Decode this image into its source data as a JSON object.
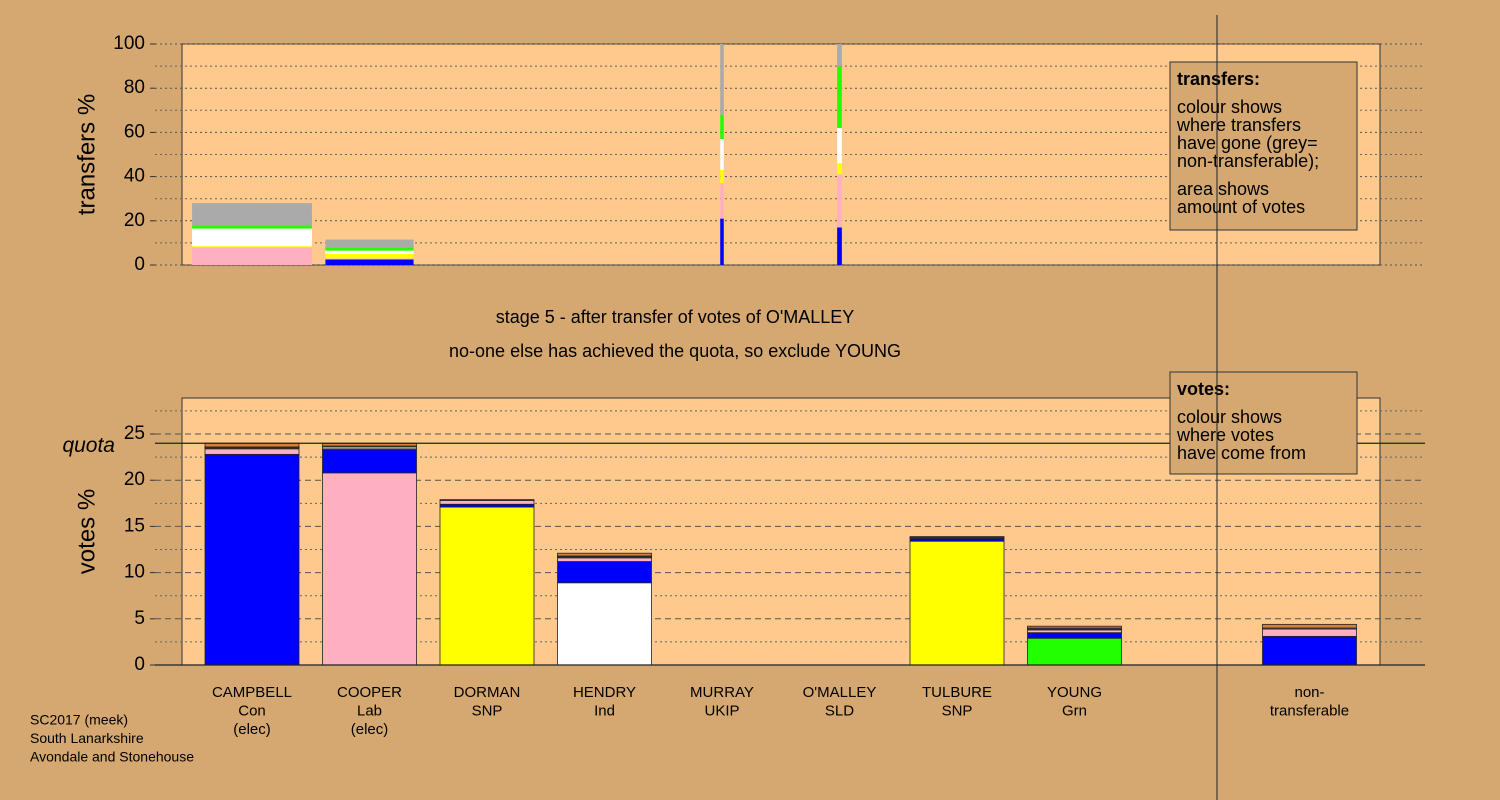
{
  "chart_data": [
    {
      "type": "bar",
      "stacked": true,
      "ylabel": "transfers %",
      "ylim": [
        0,
        100
      ],
      "yticks": [
        0,
        20,
        40,
        60,
        80,
        100
      ],
      "grid": true,
      "widths": [
        1.02,
        0.75,
        0,
        0,
        0.03,
        0.04,
        0,
        0,
        null,
        0
      ],
      "series": [
        {
          "color": "#0000ff",
          "values": [
            0,
            2.5,
            0,
            0,
            21,
            17,
            0,
            0,
            null,
            0
          ]
        },
        {
          "color": "#ffb0c0",
          "values": [
            8,
            0.5,
            0,
            0,
            16,
            24,
            0,
            0,
            null,
            0
          ]
        },
        {
          "color": "#ffff00",
          "values": [
            0.5,
            2,
            0,
            0,
            6,
            5,
            0,
            0,
            null,
            0
          ]
        },
        {
          "color": "#ffffff",
          "values": [
            8,
            1.5,
            0,
            0,
            14,
            16,
            0,
            0,
            null,
            0
          ]
        },
        {
          "color": "#22ff00",
          "values": [
            1.5,
            1.5,
            0,
            0,
            11,
            28,
            0,
            0,
            null,
            0
          ]
        },
        {
          "color": "#aaaaaa",
          "values": [
            10,
            3.5,
            0,
            0,
            32,
            10,
            0,
            0,
            null,
            0
          ]
        }
      ],
      "legend_title": "transfers:",
      "legend_lines": [
        [
          "colour shows",
          "where transfers",
          "have gone (grey=",
          "non-transferable);"
        ],
        [
          "area shows",
          "amount of votes"
        ]
      ]
    },
    {
      "type": "bar",
      "stacked": true,
      "ylabel": "votes %",
      "ylim": [
        0,
        28.9
      ],
      "yticks": [
        0,
        5,
        10,
        15,
        20,
        25
      ],
      "grid": true,
      "quota": 24,
      "quota_label": "quota",
      "categories": [
        [
          "CAMPBELL",
          "Con",
          "(elec)"
        ],
        [
          "COOPER",
          "Lab",
          "(elec)"
        ],
        [
          "DORMAN",
          "SNP"
        ],
        [
          "HENDRY",
          "Ind"
        ],
        [
          "MURRAY",
          "UKIP"
        ],
        [
          "O'MALLEY",
          "SLD"
        ],
        [
          "TULBURE",
          "SNP"
        ],
        [
          "YOUNG",
          "Grn"
        ],
        null,
        [
          "non-",
          "transferable"
        ]
      ],
      "series": [
        {
          "colors": [
            "#0000ff",
            "#ffb0c0",
            "#ffff00",
            "#ffffff",
            "#ffffff",
            "#ffff00",
            "#ffff00",
            "#22ff00",
            null,
            null
          ],
          "values": [
            22.8,
            20.8,
            17.1,
            8.9,
            0,
            0,
            13.4,
            2.9,
            null,
            0
          ]
        },
        {
          "color": "#0000ff",
          "values": [
            0,
            2.5,
            0.3,
            2.3,
            0,
            0,
            0.3,
            0.6,
            null,
            3.1
          ]
        },
        {
          "color": "#ffb0c0",
          "values": [
            0.6,
            0,
            0.4,
            0.4,
            0,
            0,
            0.1,
            0.3,
            null,
            0.8
          ]
        },
        {
          "color": "#ffff00",
          "values": [
            0.1,
            0.1,
            0,
            0.1,
            0,
            0,
            0,
            0.1,
            null,
            0
          ]
        },
        {
          "color": "#ffffff",
          "values": [
            0.1,
            0.2,
            0,
            0,
            0,
            0,
            0,
            0.1,
            null,
            0.1
          ]
        },
        {
          "color": "#22ff00",
          "values": [
            0,
            0.1,
            0,
            0.1,
            0,
            0,
            0,
            0,
            null,
            0
          ]
        },
        {
          "color": "#d08040",
          "values": [
            0.4,
            0.3,
            0.1,
            0.3,
            0,
            0,
            0.1,
            0.2,
            null,
            0.4
          ]
        }
      ],
      "legend_title": "votes:",
      "legend_lines": [
        [
          "colour shows",
          "where votes",
          "have come from"
        ]
      ]
    }
  ],
  "stage_lines": [
    "stage 5 - after transfer of votes of O'MALLEY",
    "no-one else has achieved the quota, so exclude YOUNG"
  ],
  "footer": [
    "SC2017 (meek)",
    "South Lanarkshire",
    "Avondale and Stonehouse"
  ]
}
